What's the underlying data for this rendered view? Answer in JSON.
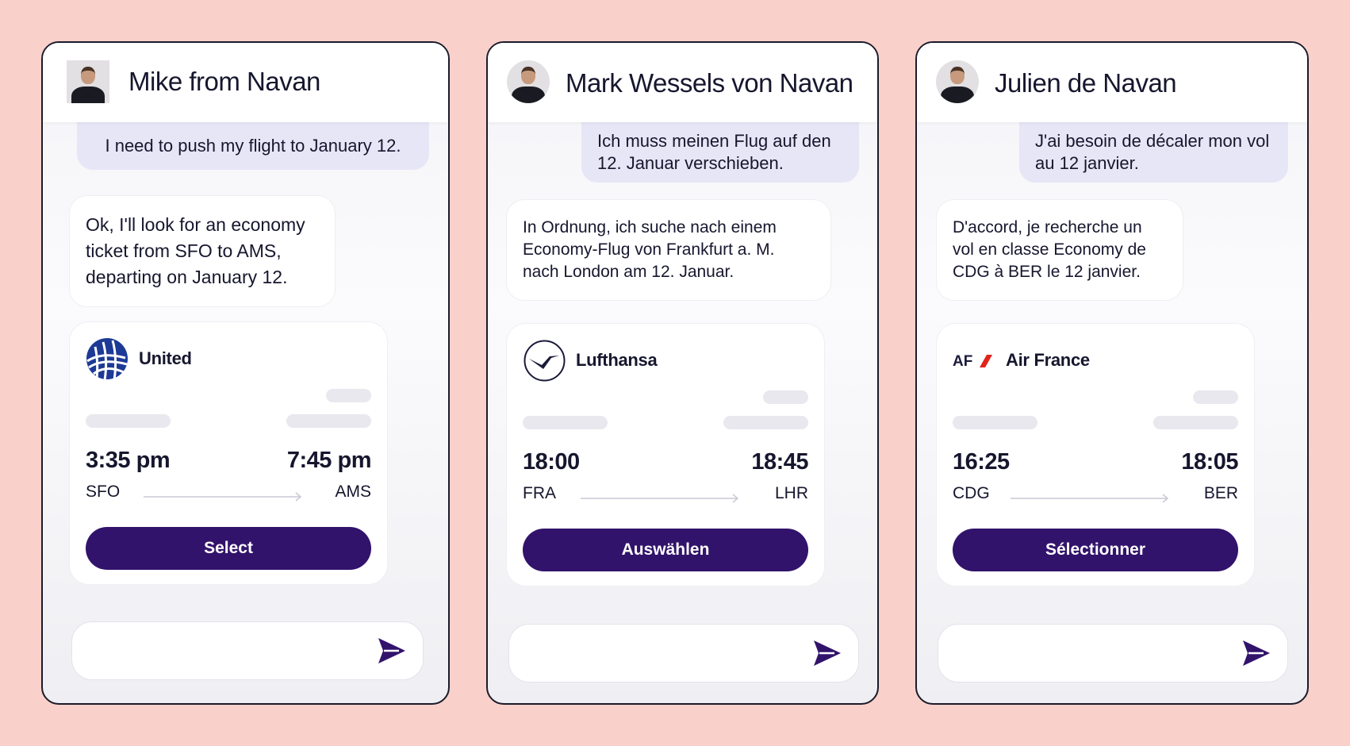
{
  "panels": [
    {
      "agent_name": "Mike from Navan",
      "user_message": "I need to push my flight to January 12.",
      "bot_message": "Ok, I'll look for an economy ticket from SFO to AMS, departing on January 12.",
      "flight": {
        "airline": "United",
        "logo_icon": "united-globe-icon",
        "departure_time": "3:35 pm",
        "arrival_time": "7:45 pm",
        "origin": "SFO",
        "destination": "AMS",
        "select_label": "Select"
      }
    },
    {
      "agent_name": "Mark Wessels von Navan",
      "user_message": "Ich muss meinen Flug auf den 12. Januar verschieben.",
      "bot_message": "In Ordnung, ich suche nach einem Economy-Flug von Frankfurt a. M. nach London am 12. Januar.",
      "flight": {
        "airline": "Lufthansa",
        "logo_icon": "lufthansa-crane-icon",
        "departure_time": "18:00",
        "arrival_time": "18:45",
        "origin": "FRA",
        "destination": "LHR",
        "select_label": "Auswählen"
      }
    },
    {
      "agent_name": "Julien de Navan",
      "user_message": "J'ai besoin de décaler mon vol au 12 janvier.",
      "bot_message": "D'accord, je recherche un vol en classe Economy de CDG à BER le 12 janvier.",
      "flight": {
        "airline": "Air France",
        "logo_icon": "air-france-logo",
        "logo_text": "AF",
        "departure_time": "16:25",
        "arrival_time": "18:05",
        "origin": "CDG",
        "destination": "BER",
        "select_label": "Sélectionner"
      }
    }
  ],
  "colors": {
    "background": "#f9d1ca",
    "button": "#32136b",
    "user_bubble": "#e6e6f6",
    "send_icon": "#32136b"
  }
}
